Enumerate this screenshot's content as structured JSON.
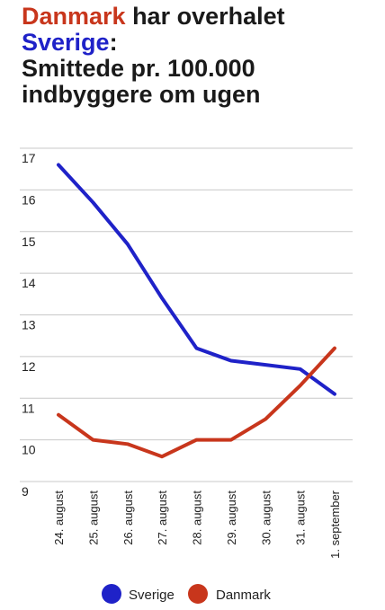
{
  "title": {
    "part1": "Danmark",
    "part2": " har overhalet",
    "part3": "Sverige",
    "part4": ":",
    "line3": "Smittede pr. 100.000",
    "line4": "indbyggere om ugen"
  },
  "colors": {
    "sverige": "#1f22c8",
    "danmark": "#c8361c",
    "grid": "#c8c8c8",
    "text": "#222222"
  },
  "chart_data": {
    "type": "line",
    "categories": [
      "24. august",
      "25. august",
      "26. august",
      "27. august",
      "28. august",
      "29. august",
      "30. august",
      "31. august",
      "1. september"
    ],
    "series": [
      {
        "name": "Sverige",
        "values": [
          16.6,
          15.7,
          14.7,
          13.4,
          12.2,
          11.9,
          11.8,
          11.7,
          11.1
        ]
      },
      {
        "name": "Danmark",
        "values": [
          10.6,
          10.0,
          9.9,
          9.6,
          10.0,
          10.0,
          10.5,
          11.3,
          12.2
        ]
      }
    ],
    "yticks": [
      "17",
      "16",
      "15",
      "14",
      "13",
      "12",
      "11",
      "10",
      "9"
    ],
    "ylim": [
      9,
      17
    ],
    "grid": true,
    "legend": "bottom"
  }
}
